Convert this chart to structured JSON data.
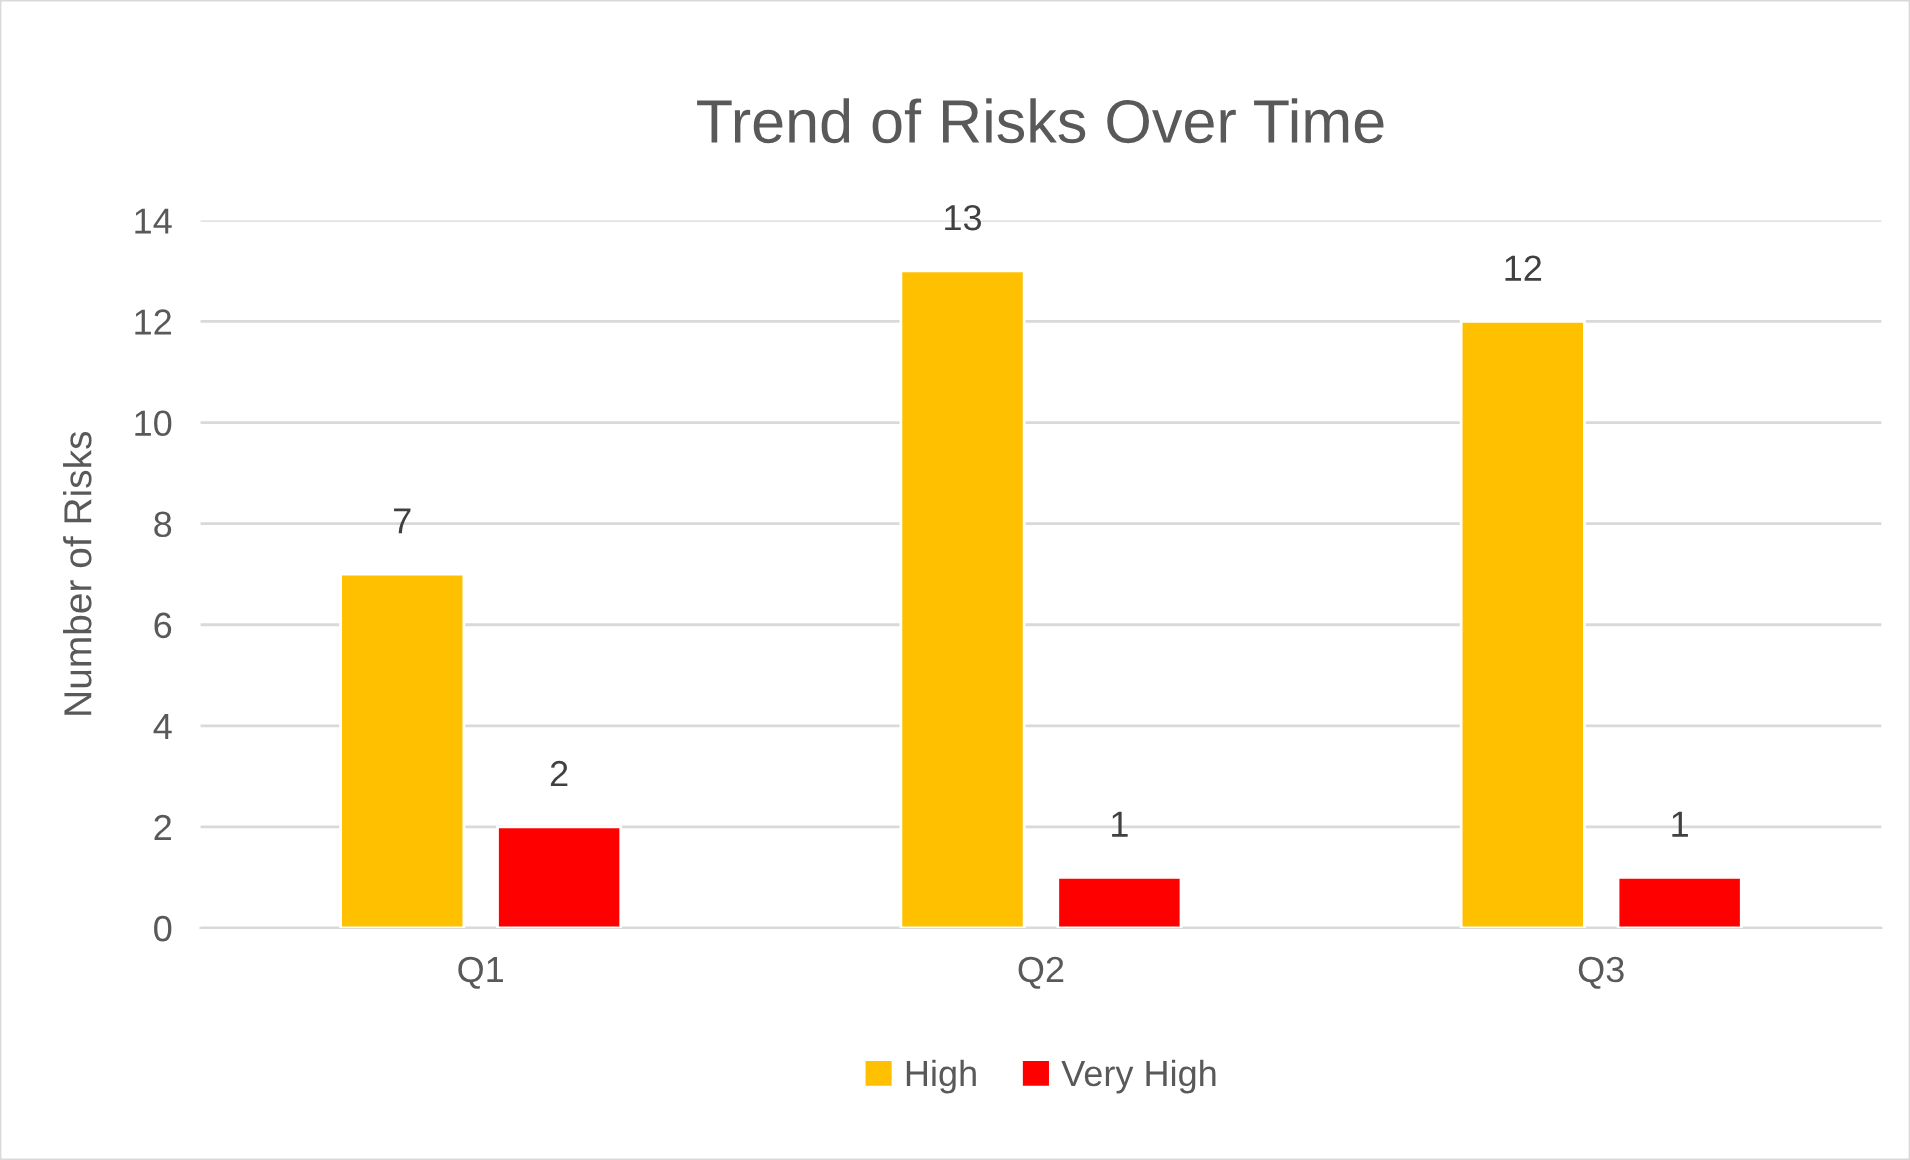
{
  "chart_data": {
    "type": "bar",
    "title": "Trend of Risks Over Time",
    "ylabel": "Number of Risks",
    "categories": [
      "Q1",
      "Q2",
      "Q3"
    ],
    "series": [
      {
        "name": "High",
        "color": "#ffc000",
        "values": [
          7,
          13,
          12
        ]
      },
      {
        "name": "Very High",
        "color": "#ff0000",
        "values": [
          2,
          1,
          1
        ]
      }
    ],
    "ylim": [
      0,
      14
    ],
    "yticks": [
      0,
      2,
      4,
      6,
      8,
      10,
      12,
      14
    ],
    "grid": "y",
    "legend": "bottom",
    "data_labels": true
  }
}
